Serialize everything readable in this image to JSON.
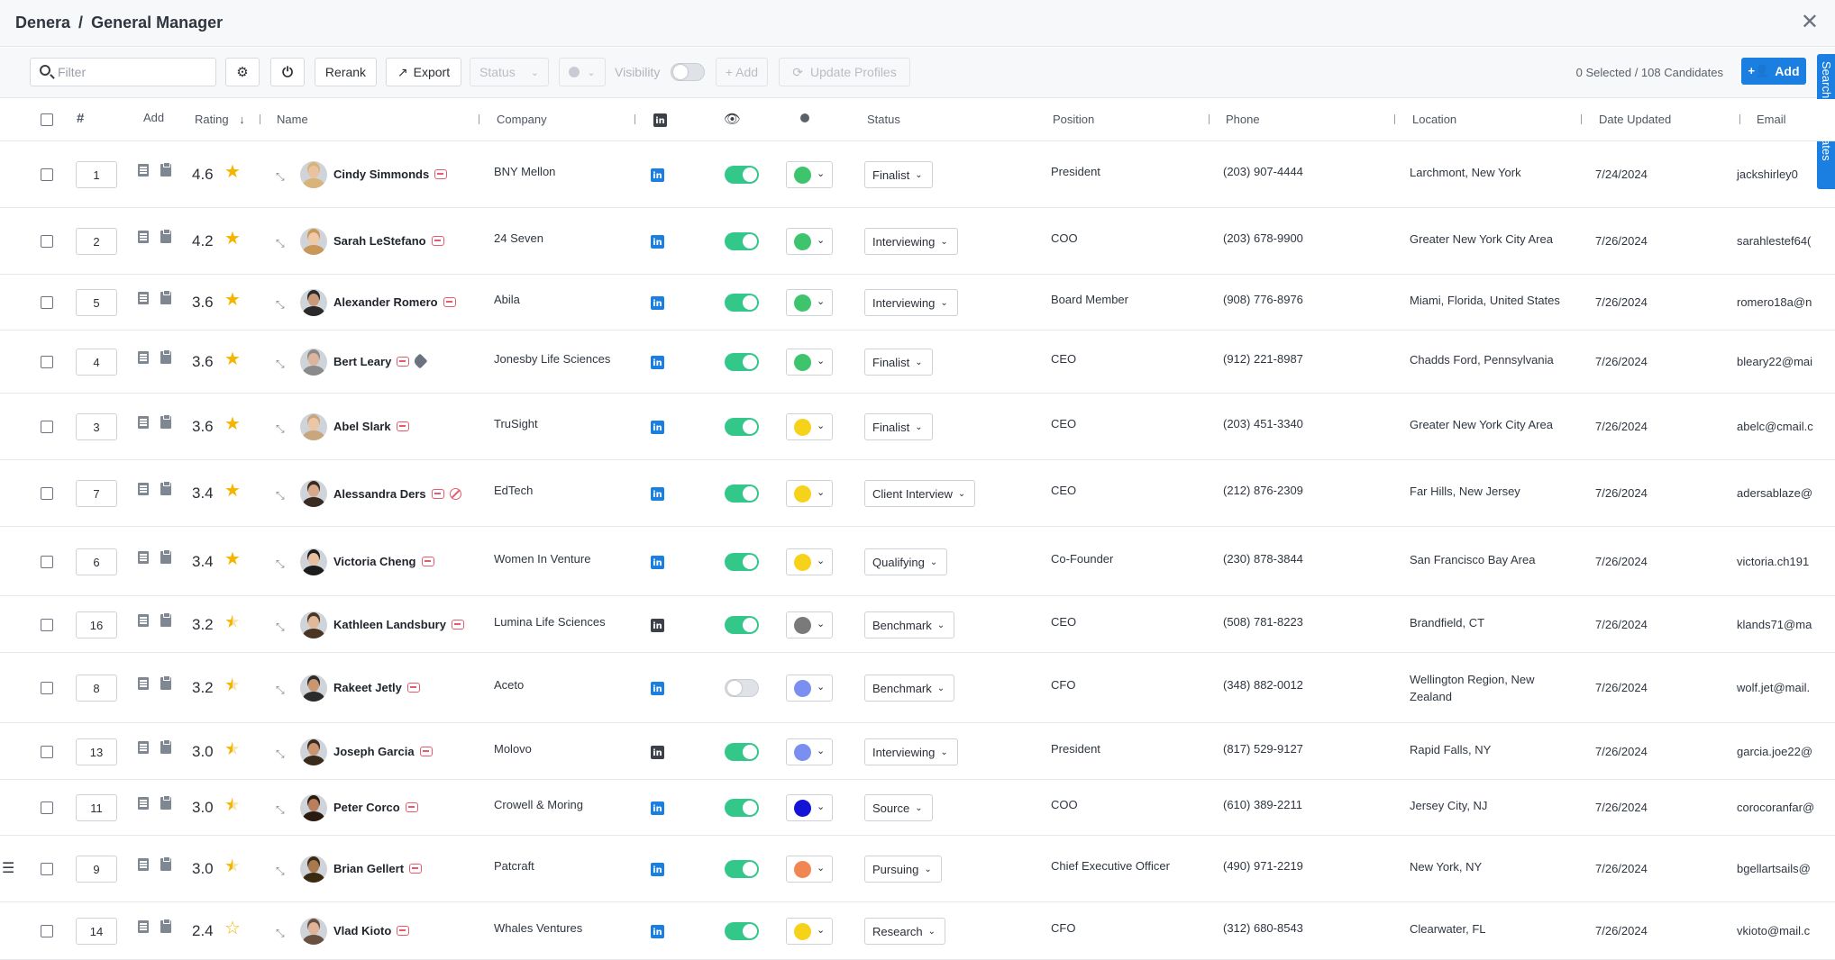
{
  "window": {
    "org": "Denera",
    "separator": "/",
    "project": "General Manager",
    "close_icon": "close-icon"
  },
  "toolbar": {
    "filter_placeholder": "Filter",
    "rerank_label": "Rerank",
    "export_label": "Export",
    "status_label": "Status",
    "visibility_label": "Visibility",
    "add_small_label": "+ Add",
    "update_profiles_label": "Update Profiles",
    "selection_count": "0 Selected / 108 Candidates",
    "add_label": "Add"
  },
  "side_tab": {
    "label": "Search Candidates"
  },
  "columns": {
    "number": "#",
    "add": "Add",
    "rating": "Rating",
    "name": "Name",
    "company": "Company",
    "status": "Status",
    "position": "Position",
    "phone": "Phone",
    "location": "Location",
    "date_updated": "Date Updated",
    "email": "Email"
  },
  "colors": {
    "accent": "#1a7fe0",
    "toggle_on": "#34c78a",
    "tag": "#e55b6c"
  },
  "rows": [
    {
      "rank": "1",
      "rating": "4.6",
      "name": "Cindy Simmonds",
      "company": "BNY Mellon",
      "linkedin": "blue",
      "visible": true,
      "color": "#3ec46d",
      "status": "Finalist",
      "position": "President",
      "phone": "(203) 907-4444",
      "location": [
        "Larchmont, New York"
      ],
      "date": "7/24/2024",
      "email": "jackshirley0",
      "extra": "",
      "star": "full",
      "skin": "#e9c29f",
      "hair": "#d8b37a"
    },
    {
      "rank": "2",
      "rating": "4.2",
      "name": "Sarah LeStefano",
      "company": "24 Seven",
      "linkedin": "blue",
      "visible": true,
      "color": "#3ec46d",
      "status": "Interviewing",
      "position": "COO",
      "phone": "(203) 678-9900",
      "location": [
        "Greater New York City Area"
      ],
      "date": "7/26/2024",
      "email": "sarahlestef64(",
      "extra": "",
      "star": "full",
      "skin": "#f0c9a8",
      "hair": "#c9975a"
    },
    {
      "rank": "5",
      "rating": "3.6",
      "name": "Alexander Romero",
      "company": "Abila",
      "linkedin": "blue",
      "visible": true,
      "color": "#3ec46d",
      "status": "Interviewing",
      "position": "Board Member",
      "phone": "(908) 776-8976",
      "location": [
        "Miami, Florida, United States"
      ],
      "date": "7/26/2024",
      "email": "romero18a@n",
      "extra": "",
      "star": "full",
      "skin": "#c99a7a",
      "hair": "#2a2a2a"
    },
    {
      "rank": "4",
      "rating": "3.6",
      "name": "Bert Leary",
      "company": "Jonesby Life Sciences",
      "linkedin": "blue",
      "visible": true,
      "color": "#3ec46d",
      "status": "Finalist",
      "position": "CEO",
      "phone": "(912) 221-8987",
      "location": [
        "Chadds Ford, Pennsylvania"
      ],
      "date": "7/26/2024",
      "email": "bleary22@mai",
      "extra": "tag",
      "star": "full",
      "skin": "#dcb59c",
      "hair": "#8a8a8a"
    },
    {
      "rank": "3",
      "rating": "3.6",
      "name": "Abel Slark",
      "company": "TruSight",
      "linkedin": "blue",
      "visible": true,
      "color": "#f7d21a",
      "status": "Finalist",
      "position": "CEO",
      "phone": "(203) 451-3340",
      "location": [
        "Greater New York City Area"
      ],
      "date": "7/26/2024",
      "email": "abelc@cmail.c",
      "extra": "",
      "star": "full",
      "skin": "#ecc7a6",
      "hair": "#c9a77e"
    },
    {
      "rank": "7",
      "rating": "3.4",
      "name": "Alessandra Ders",
      "company": "EdTech",
      "linkedin": "blue",
      "visible": true,
      "color": "#f7d21a",
      "status": "Client Interview",
      "position": "CEO",
      "phone": "(212) 876-2309",
      "location": [
        "Far Hills, New Jersey"
      ],
      "date": "7/26/2024",
      "email": "adersablaze@",
      "extra": "ban",
      "star": "full",
      "skin": "#d9a88a",
      "hair": "#3a2a20"
    },
    {
      "rank": "6",
      "rating": "3.4",
      "name": "Victoria Cheng",
      "company": "Women In Venture",
      "linkedin": "blue",
      "visible": true,
      "color": "#f7d21a",
      "status": "Qualifying",
      "position": "Co-Founder",
      "phone": "(230) 878-3844",
      "location": [
        "San Francisco Bay Area"
      ],
      "date": "7/26/2024",
      "email": "victoria.ch191",
      "extra": "",
      "star": "full",
      "skin": "#e6bfa0",
      "hair": "#1c1c1c"
    },
    {
      "rank": "16",
      "rating": "3.2",
      "name": "Kathleen Landsbury",
      "company": "Lumina Life Sciences",
      "linkedin": "dark",
      "visible": true,
      "color": "#7a7a7a",
      "status": "Benchmark",
      "position": "CEO",
      "phone": "(508) 781-8223",
      "location": [
        "Brandfield, CT"
      ],
      "date": "7/26/2024",
      "email": "klands71@ma",
      "extra": "",
      "star": "half",
      "skin": "#e2b998",
      "hair": "#4a3525"
    },
    {
      "rank": "8",
      "rating": "3.2",
      "name": "Rakeet Jetly",
      "company": "Aceto",
      "linkedin": "blue",
      "visible": false,
      "color": "#7a8ff0",
      "status": "Benchmark",
      "position": "CFO",
      "phone": "(348) 882-0012",
      "location": [
        "Wellington Region, New",
        "Zealand"
      ],
      "date": "7/26/2024",
      "email": "wolf.jet@mail.",
      "extra": "",
      "star": "half",
      "skin": "#c9966f",
      "hair": "#2c2c2c"
    },
    {
      "rank": "13",
      "rating": "3.0",
      "name": "Joseph Garcia",
      "company": "Molovo",
      "linkedin": "dark",
      "visible": true,
      "color": "#7a8ff0",
      "status": "Interviewing",
      "position": "President",
      "phone": "(817) 529-9127",
      "location": [
        "Rapid Falls, NY"
      ],
      "date": "7/26/2024",
      "email": "garcia.joe22@",
      "extra": "",
      "star": "half",
      "skin": "#c99470",
      "hair": "#3a2a1a"
    },
    {
      "rank": "11",
      "rating": "3.0",
      "name": "Peter Corco",
      "company": "Crowell & Moring",
      "linkedin": "blue",
      "visible": true,
      "color": "#1414d6",
      "status": "Source",
      "position": "COO",
      "phone": "(610) 389-2211",
      "location": [
        "Jersey City, NJ"
      ],
      "date": "7/26/2024",
      "email": "corocoranfar@",
      "extra": "",
      "star": "half",
      "skin": "#b97e5c",
      "hair": "#2a1a10"
    },
    {
      "rank": "9",
      "rating": "3.0",
      "name": "Brian Gellert",
      "company": "Patcraft",
      "linkedin": "blue",
      "visible": true,
      "color": "#f28652",
      "status": "Pursuing",
      "position": "Chief Executive Officer",
      "phone": "(490) 971-2219",
      "location": [
        "New York, NY"
      ],
      "date": "7/26/2024",
      "email": "bgellartsails@",
      "extra": "",
      "star": "half",
      "skin": "#a8784e",
      "hair": "#3a2a10"
    },
    {
      "rank": "14",
      "rating": "2.4",
      "name": "Vlad Kioto",
      "company": "Whales Ventures",
      "linkedin": "blue",
      "visible": true,
      "color": "#f7d21a",
      "status": "Research",
      "position": "CFO",
      "phone": "(312) 680-8543",
      "location": [
        "Clearwater, FL"
      ],
      "date": "7/26/2024",
      "email": "vkioto@mail.c",
      "extra": "",
      "star": "low",
      "skin": "#e0b498",
      "hair": "#6a5040"
    }
  ]
}
